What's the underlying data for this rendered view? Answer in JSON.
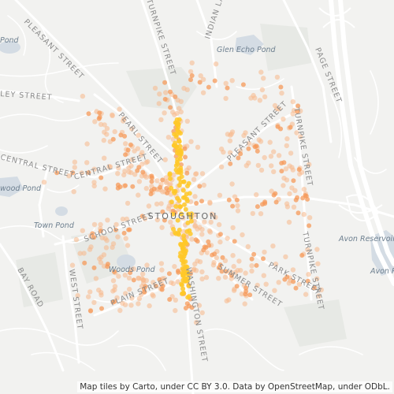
{
  "labels": {
    "town": "STOUGHTON",
    "roads": {
      "turnpike_north": "TURNPIKE STREET",
      "indian_lane": "INDIAN LANE",
      "pleasant_upper": "PLEASANT STREET",
      "page_street": "PAGE STREET",
      "ley_street": "LEY STREET",
      "pearl_street": "PEARL STREET",
      "pleasant_east": "PLEASANT STREET",
      "turnpike_east": "TURNPIKE STREET",
      "central_west": "CENTRAL STREET",
      "central_mid": "CENTRAL STREET",
      "school_street": "SCHOOL STREET",
      "park_street": "PARK STREET",
      "summer_street": "SUMMER STREET",
      "turnpike_se": "TURNPIKE STREET",
      "bay_road": "BAY ROAD",
      "west_street": "WEST STREET",
      "plain_street": "PLAIN STREET",
      "washington_street": "WASHINGTON STREET"
    },
    "water": {
      "pond_nw": "Pond",
      "glen_echo": "Glen Echo Pond",
      "wood_pond": "wood Pond",
      "town_pond": "Town Pond",
      "woods_pond": "Woods Pond",
      "avon_reservoir": "Avon Reservoir",
      "avon_pond": "Avon Pond"
    }
  },
  "attribution": "Map tiles by Carto, under CC BY 3.0. Data by OpenStreetMap, under ODbL.",
  "colors": {
    "background": "#f2f2f0",
    "water": "#d5dde5",
    "park": "#e6e8e4",
    "road": "#ffffff",
    "highway": "#ffffff",
    "point_light": "#f7b88a",
    "point_mid": "#f59a5a",
    "point_dense": "#ffc828"
  }
}
